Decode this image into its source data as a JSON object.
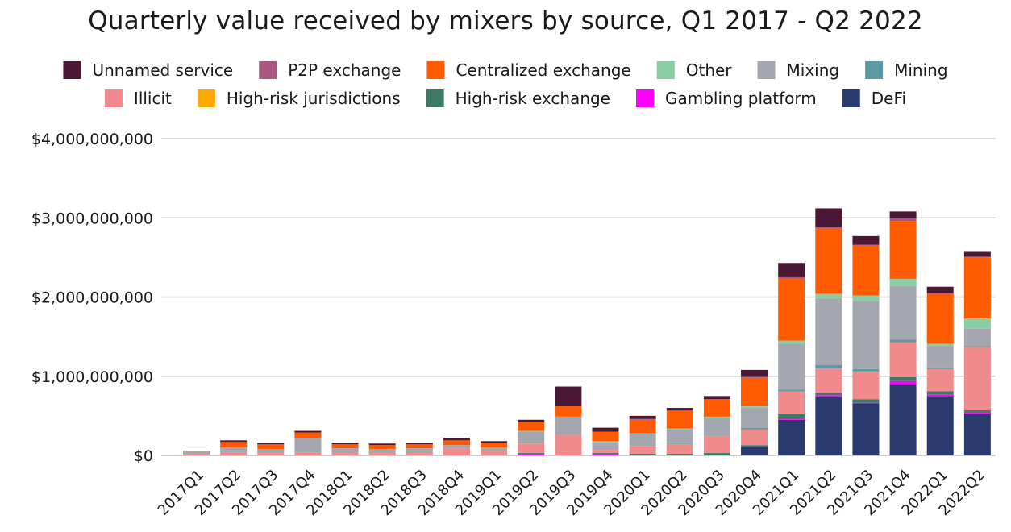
{
  "chart_data": {
    "type": "bar",
    "stacked": true,
    "title": "Quarterly value received by mixers by source, Q1 2017 - Q2 2022",
    "xlabel": "",
    "ylabel": "",
    "ylim": [
      0,
      4000000000
    ],
    "yticks": [
      0,
      1000000000,
      2000000000,
      3000000000,
      4000000000
    ],
    "ytick_labels": [
      "$0",
      "$1,000,000,000",
      "$2,000,000,000",
      "$3,000,000,000",
      "$4,000,000,000"
    ],
    "grid": true,
    "legend_position": "top",
    "categories": [
      "2017Q1",
      "2017Q2",
      "2017Q3",
      "2017Q4",
      "2018Q1",
      "2018Q2",
      "2018Q3",
      "2018Q4",
      "2019Q1",
      "2019Q2",
      "2019Q3",
      "2019Q4",
      "2020Q1",
      "2020Q2",
      "2020Q3",
      "2020Q4",
      "2021Q1",
      "2021Q2",
      "2021Q3",
      "2021Q4",
      "2022Q1",
      "2022Q2"
    ],
    "series": [
      {
        "name": "DeFi",
        "color": "#2b3a6e",
        "values": [
          0,
          0,
          0,
          0,
          0,
          0,
          0,
          0,
          0,
          0,
          0,
          0,
          0,
          0,
          0,
          110000000,
          450000000,
          740000000,
          660000000,
          890000000,
          750000000,
          530000000
        ]
      },
      {
        "name": "Gambling platform",
        "color": "#ff00ff",
        "values": [
          0,
          0,
          0,
          0,
          0,
          0,
          0,
          0,
          0,
          20000000,
          0,
          20000000,
          0,
          0,
          0,
          0,
          20000000,
          20000000,
          10000000,
          50000000,
          20000000,
          20000000
        ]
      },
      {
        "name": "High-risk exchange",
        "color": "#3d7a65",
        "values": [
          0,
          0,
          0,
          0,
          0,
          0,
          0,
          0,
          0,
          10000000,
          0,
          10000000,
          20000000,
          20000000,
          30000000,
          20000000,
          50000000,
          30000000,
          40000000,
          50000000,
          40000000,
          20000000
        ]
      },
      {
        "name": "High-risk jurisdictions",
        "color": "#ffaa00",
        "values": [
          0,
          0,
          0,
          0,
          0,
          0,
          0,
          0,
          0,
          0,
          0,
          0,
          0,
          0,
          0,
          0,
          0,
          0,
          0,
          0,
          0,
          0
        ]
      },
      {
        "name": "Illicit",
        "color": "#f08a8c",
        "values": [
          20000000,
          40000000,
          30000000,
          40000000,
          30000000,
          30000000,
          30000000,
          90000000,
          60000000,
          120000000,
          260000000,
          40000000,
          100000000,
          120000000,
          210000000,
          200000000,
          290000000,
          310000000,
          350000000,
          440000000,
          280000000,
          800000000
        ]
      },
      {
        "name": "Mining",
        "color": "#5b9aa4",
        "values": [
          0,
          0,
          0,
          0,
          0,
          0,
          0,
          0,
          0,
          0,
          0,
          0,
          0,
          10000000,
          0,
          20000000,
          20000000,
          40000000,
          30000000,
          30000000,
          20000000,
          10000000
        ]
      },
      {
        "name": "Mixing",
        "color": "#a4a7b0",
        "values": [
          30000000,
          60000000,
          50000000,
          180000000,
          60000000,
          50000000,
          60000000,
          40000000,
          40000000,
          150000000,
          230000000,
          100000000,
          150000000,
          180000000,
          230000000,
          250000000,
          580000000,
          840000000,
          860000000,
          680000000,
          270000000,
          220000000
        ]
      },
      {
        "name": "Other",
        "color": "#8acca3",
        "values": [
          0,
          0,
          0,
          0,
          0,
          0,
          0,
          0,
          0,
          10000000,
          0,
          10000000,
          10000000,
          10000000,
          20000000,
          20000000,
          40000000,
          60000000,
          70000000,
          90000000,
          30000000,
          130000000
        ]
      },
      {
        "name": "Centralized exchange",
        "color": "#ff5a00",
        "values": [
          10000000,
          70000000,
          60000000,
          70000000,
          50000000,
          50000000,
          50000000,
          60000000,
          60000000,
          110000000,
          130000000,
          120000000,
          170000000,
          220000000,
          220000000,
          360000000,
          780000000,
          830000000,
          630000000,
          730000000,
          630000000,
          770000000
        ]
      },
      {
        "name": "P2P exchange",
        "color": "#a85580",
        "values": [
          0,
          0,
          0,
          0,
          0,
          0,
          0,
          0,
          0,
          0,
          0,
          0,
          10000000,
          10000000,
          0,
          10000000,
          20000000,
          20000000,
          10000000,
          30000000,
          10000000,
          10000000
        ]
      },
      {
        "name": "Unnamed service",
        "color": "#4a1835",
        "values": [
          0,
          20000000,
          20000000,
          20000000,
          20000000,
          20000000,
          20000000,
          30000000,
          20000000,
          30000000,
          250000000,
          50000000,
          40000000,
          30000000,
          40000000,
          90000000,
          180000000,
          230000000,
          110000000,
          90000000,
          80000000,
          60000000
        ]
      }
    ],
    "legend": [
      {
        "name": "Unnamed service",
        "color": "#4a1835"
      },
      {
        "name": "P2P exchange",
        "color": "#a85580"
      },
      {
        "name": "Centralized exchange",
        "color": "#ff5a00"
      },
      {
        "name": "Other",
        "color": "#8acca3"
      },
      {
        "name": "Mixing",
        "color": "#a4a7b0"
      },
      {
        "name": "Mining",
        "color": "#5b9aa4"
      },
      {
        "name": "Illicit",
        "color": "#f08a8c"
      },
      {
        "name": "High-risk jurisdictions",
        "color": "#ffaa00"
      },
      {
        "name": "High-risk exchange",
        "color": "#3d7a65"
      },
      {
        "name": "Gambling platform",
        "color": "#ff00ff"
      },
      {
        "name": "DeFi",
        "color": "#2b3a6e"
      }
    ]
  }
}
